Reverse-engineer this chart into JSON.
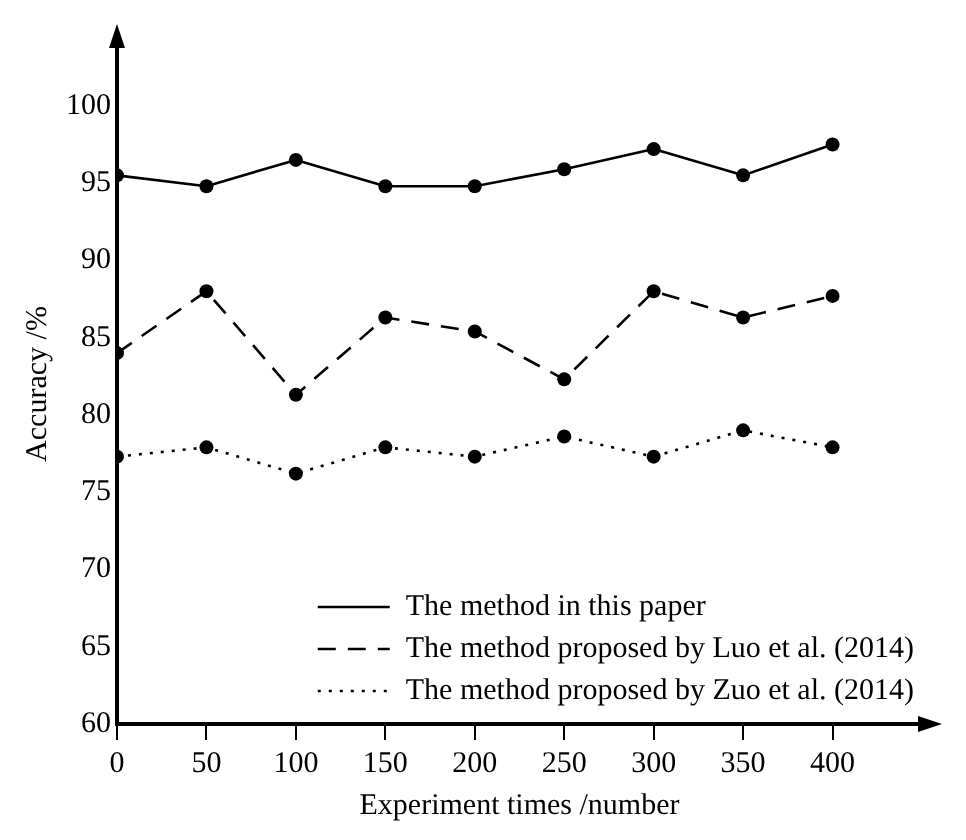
{
  "chart_data": {
    "type": "line",
    "xlabel": "Experiment times /number",
    "ylabel": "Accuracy /%",
    "x": [
      0,
      50,
      100,
      150,
      200,
      250,
      300,
      350,
      400
    ],
    "series": [
      {
        "name": "The method in this paper",
        "color": "#000000",
        "line_style": "solid",
        "values": [
          95.5,
          94.8,
          96.5,
          94.8,
          94.8,
          95.9,
          97.2,
          95.5,
          97.5
        ]
      },
      {
        "name": "The method proposed by Luo et al. (2014)",
        "color": "#000000",
        "line_style": "dashed",
        "values": [
          84.0,
          88.0,
          81.3,
          86.3,
          85.4,
          82.3,
          88.0,
          86.3,
          87.7
        ]
      },
      {
        "name": "The method proposed by Zuo et al. (2014)",
        "color": "#000000",
        "line_style": "dotted",
        "values": [
          77.3,
          77.9,
          76.2,
          77.9,
          77.3,
          78.6,
          77.3,
          79.0,
          77.9
        ]
      }
    ],
    "xlim": [
      0,
      450
    ],
    "xticks": [
      0,
      50,
      100,
      150,
      200,
      250,
      300,
      350,
      400
    ],
    "ylim": [
      60,
      104
    ],
    "yticks": [
      60,
      65,
      70,
      75,
      80,
      85,
      90,
      95,
      100
    ],
    "grid": false,
    "legend": "bottom right",
    "marker": "circle"
  }
}
